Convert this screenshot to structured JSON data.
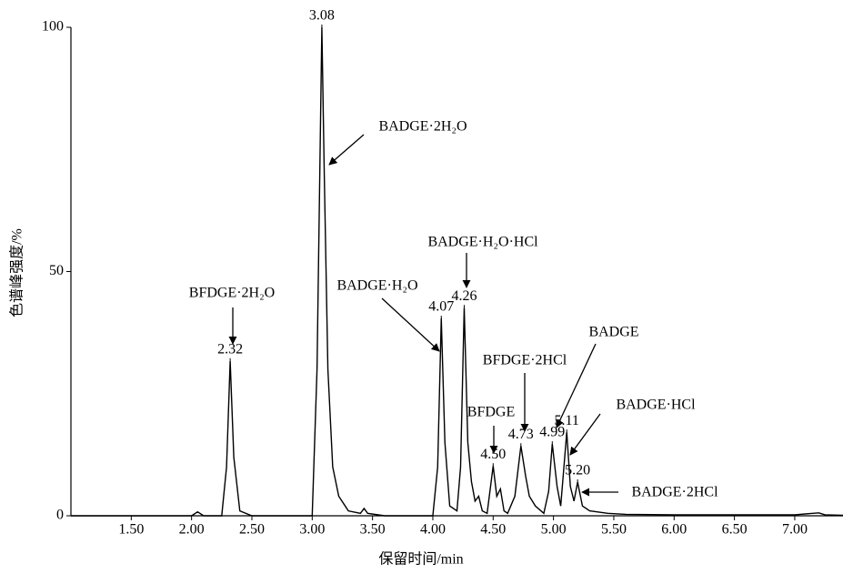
{
  "chart_data": {
    "type": "line",
    "x_label": "保留时间/min",
    "y_label": "色谱峰强度/%",
    "xlim": [
      1.0,
      7.4
    ],
    "ylim": [
      0,
      100
    ],
    "xticks": [
      {
        "value": 1.5,
        "label": "1.50"
      },
      {
        "value": 2,
        "label": "2.00"
      },
      {
        "value": 2.5,
        "label": "2.50"
      },
      {
        "value": 3,
        "label": "3.00"
      },
      {
        "value": 3.5,
        "label": "3.50"
      },
      {
        "value": 4,
        "label": "4.00"
      },
      {
        "value": 4.5,
        "label": "4.50"
      },
      {
        "value": 5,
        "label": "5.00"
      },
      {
        "value": 5.5,
        "label": "5.50"
      },
      {
        "value": 6,
        "label": "6.00"
      },
      {
        "value": 6.5,
        "label": "6.50"
      },
      {
        "value": 7,
        "label": "7.00"
      }
    ],
    "yticks": [
      0,
      50,
      100
    ],
    "series": [
      {
        "color": "#000000",
        "x": [
          1.0,
          2.0,
          2.05,
          2.1,
          2.25,
          2.29,
          2.32,
          2.35,
          2.4,
          2.5,
          3.0,
          3.04,
          3.08,
          3.1,
          3.13,
          3.17,
          3.22,
          3.3,
          3.4,
          3.43,
          3.46,
          3.6,
          4.0,
          4.04,
          4.07,
          4.1,
          4.14,
          4.2,
          4.23,
          4.26,
          4.29,
          4.32,
          4.35,
          4.38,
          4.41,
          4.45,
          4.5,
          4.53,
          4.56,
          4.59,
          4.62,
          4.68,
          4.73,
          4.77,
          4.8,
          4.85,
          4.92,
          4.96,
          4.99,
          5.03,
          5.06,
          5.08,
          5.11,
          5.14,
          5.17,
          5.2,
          5.24,
          5.3,
          5.45,
          5.6,
          6.0,
          7.0,
          7.2,
          7.25,
          7.4
        ],
        "values": [
          0,
          0,
          0.8,
          0,
          0,
          10,
          31.7,
          12,
          1,
          0,
          0,
          30,
          100,
          70,
          30,
          10,
          4,
          1,
          0.5,
          1.5,
          0.5,
          0,
          0,
          10,
          40.4,
          15,
          2,
          1,
          10,
          42.6,
          15,
          7,
          3,
          4,
          1,
          0.5,
          10.2,
          4,
          5.5,
          1,
          0.5,
          4,
          14.3,
          8,
          4,
          2,
          0.5,
          5,
          14.7,
          6,
          2,
          8,
          17.1,
          6,
          3,
          6.9,
          2,
          1,
          0.5,
          0.3,
          0.2,
          0.2,
          0.6,
          0.2,
          0.1
        ]
      }
    ],
    "peaks": [
      {
        "x": 2.32,
        "label": "2.32",
        "y": 31.7,
        "compound": "BFDGE·2H₂O"
      },
      {
        "x": 3.08,
        "label": "3.08",
        "y": 100,
        "compound": "BADGE·2H₂O"
      },
      {
        "x": 4.07,
        "label": "4.07",
        "y": 40.4,
        "compound": "BADGE·H₂O"
      },
      {
        "x": 4.26,
        "label": "4.26",
        "y": 42.6,
        "compound": "BADGE·H₂O·HCl"
      },
      {
        "x": 4.5,
        "label": "4.50",
        "y": 10.2,
        "compound": "BFDGE"
      },
      {
        "x": 4.73,
        "label": "4.73",
        "y": 14.3,
        "compound": "BFDGE·2HCl"
      },
      {
        "x": 4.99,
        "label": "4.99",
        "y": 14.7,
        "compound": "BADGE"
      },
      {
        "x": 5.11,
        "label": "5.11",
        "y": 17.1,
        "compound": "BADGE·HCl"
      },
      {
        "x": 5.2,
        "label": "5.20",
        "y": 6.9,
        "compound": "BADGE·2HCl"
      }
    ]
  }
}
